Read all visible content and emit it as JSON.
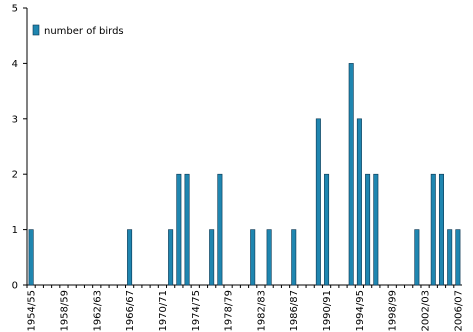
{
  "chart_data": {
    "type": "bar",
    "categories": [
      "1954/55",
      null,
      null,
      null,
      "1958/59",
      null,
      null,
      null,
      "1962/63",
      null,
      null,
      null,
      "1966/67",
      null,
      null,
      null,
      "1970/71",
      null,
      null,
      null,
      "1974/75",
      null,
      null,
      null,
      "1978/79",
      null,
      null,
      null,
      "1982/83",
      null,
      null,
      null,
      "1986/87",
      null,
      null,
      null,
      "1990/91",
      null,
      null,
      null,
      "1994/95",
      null,
      null,
      null,
      "1998/99",
      null,
      null,
      null,
      "2002/03",
      null,
      null,
      null,
      "2006/07"
    ],
    "series": [
      {
        "name": "number of birds",
        "color": "#1f86b0",
        "values": [
          1,
          0,
          0,
          0,
          0,
          0,
          0,
          0,
          0,
          0,
          0,
          0,
          1,
          0,
          0,
          0,
          0,
          1,
          2,
          2,
          0,
          0,
          1,
          2,
          0,
          0,
          0,
          1,
          0,
          1,
          0,
          0,
          1,
          0,
          0,
          3,
          2,
          0,
          0,
          4,
          3,
          2,
          2,
          0,
          0,
          0,
          0,
          1,
          0,
          2,
          2,
          1,
          1
        ]
      }
    ],
    "ylim": [
      0,
      5
    ],
    "yticks": [
      0,
      1,
      2,
      3,
      4,
      5
    ],
    "legend": "top-left"
  }
}
